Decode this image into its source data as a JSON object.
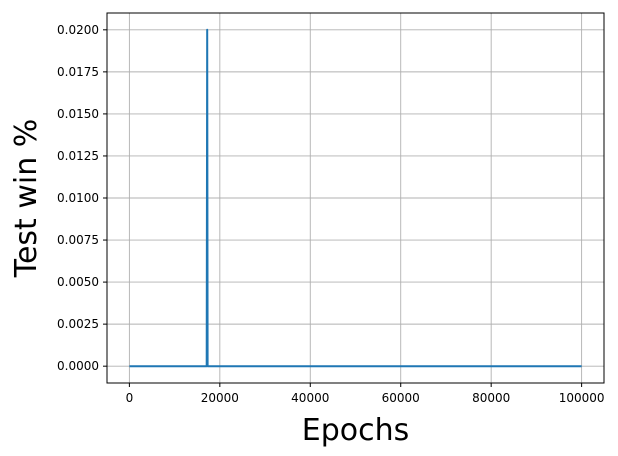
{
  "chart_data": {
    "type": "line",
    "xlabel": "Epochs",
    "ylabel": "Test win %",
    "xlim": [
      -4950,
      104950
    ],
    "ylim": [
      -0.001,
      0.021
    ],
    "xticks": [
      0,
      20000,
      40000,
      60000,
      80000,
      100000
    ],
    "xtick_labels": [
      "0",
      "20000",
      "40000",
      "60000",
      "80000",
      "100000"
    ],
    "yticks": [
      0.0,
      0.0025,
      0.005,
      0.0075,
      0.01,
      0.0125,
      0.015,
      0.0175,
      0.02
    ],
    "ytick_labels": [
      "0.0000",
      "0.0025",
      "0.0050",
      "0.0075",
      "0.0100",
      "0.0125",
      "0.0150",
      "0.0175",
      "0.0200"
    ],
    "grid": true,
    "colors": {
      "line": "#1f77b4",
      "grid": "#b0b0b0"
    },
    "series": [
      {
        "x": [
          0,
          17100,
          17200,
          17300,
          17400,
          100000
        ],
        "y": [
          0,
          0,
          0.02,
          0,
          0,
          0
        ]
      }
    ]
  }
}
